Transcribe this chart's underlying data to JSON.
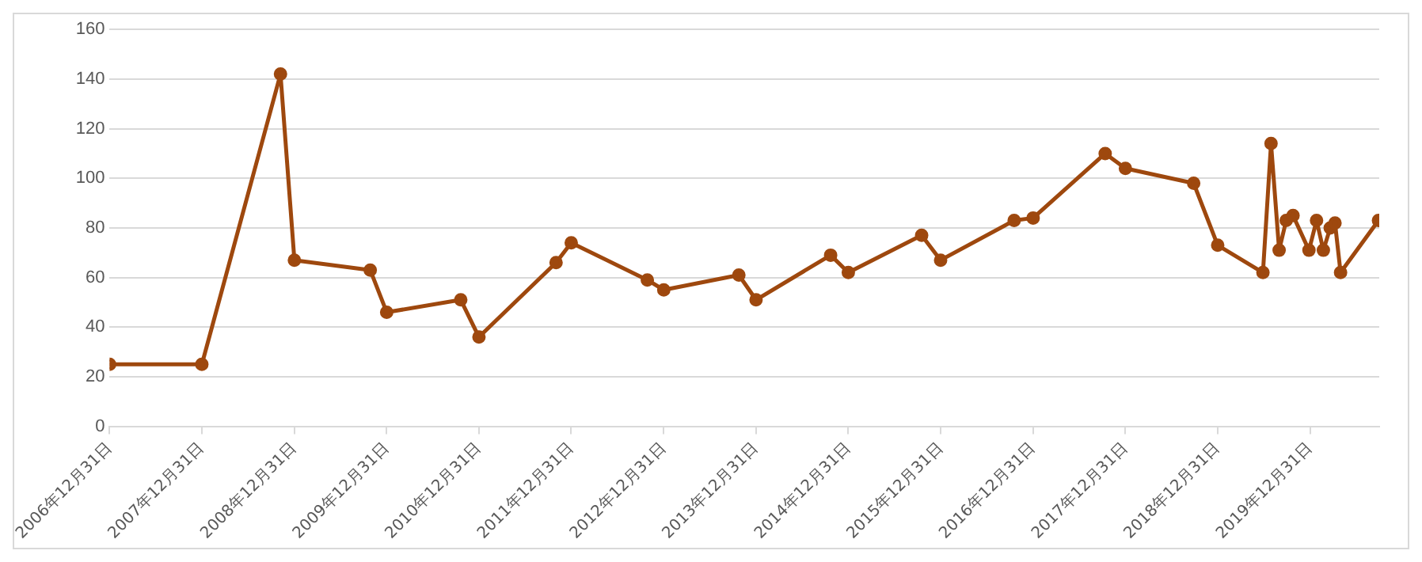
{
  "chart_data": {
    "type": "line",
    "x": [
      "2006-12-31",
      "2007-12-31",
      "2008-11-06",
      "2008-12-31",
      "2009-10-27",
      "2009-12-31",
      "2010-10-20",
      "2010-12-31",
      "2011-11-01",
      "2011-12-31",
      "2012-10-27",
      "2012-12-31",
      "2013-10-24",
      "2013-12-31",
      "2014-10-22",
      "2014-12-31",
      "2015-10-17",
      "2015-12-31",
      "2016-10-17",
      "2016-12-31",
      "2017-10-12",
      "2017-12-31",
      "2018-09-27",
      "2018-12-31",
      "2019-06-28",
      "2019-07-30",
      "2019-08-31",
      "2019-09-28",
      "2019-10-25",
      "2019-12-27",
      "2020-01-26",
      "2020-02-22",
      "2020-03-20",
      "2020-04-08",
      "2020-04-30",
      "2020-09-27"
    ],
    "series": [
      {
        "color": "#9e480e",
        "values": [
          25,
          25,
          142,
          67,
          63,
          46,
          51,
          36,
          66,
          74,
          59,
          55,
          61,
          51,
          69,
          62,
          77,
          67,
          83,
          84,
          110,
          104,
          98,
          73,
          62,
          114,
          71,
          83,
          85,
          71,
          83,
          71,
          80,
          82,
          62,
          83
        ]
      }
    ],
    "xlim": [
      "2006-12-31",
      "2020-09-30"
    ],
    "xticks": [
      {
        "value": "2006-12-31",
        "label": "2006年12月31日"
      },
      {
        "value": "2007-12-31",
        "label": "2007年12月31日"
      },
      {
        "value": "2008-12-31",
        "label": "2008年12月31日"
      },
      {
        "value": "2009-12-31",
        "label": "2009年12月31日"
      },
      {
        "value": "2010-12-31",
        "label": "2010年12月31日"
      },
      {
        "value": "2011-12-31",
        "label": "2011年12月31日"
      },
      {
        "value": "2012-12-31",
        "label": "2012年12月31日"
      },
      {
        "value": "2013-12-31",
        "label": "2013年12月31日"
      },
      {
        "value": "2014-12-31",
        "label": "2014年12月31日"
      },
      {
        "value": "2015-12-31",
        "label": "2015年12月31日"
      },
      {
        "value": "2016-12-31",
        "label": "2016年12月31日"
      },
      {
        "value": "2017-12-31",
        "label": "2017年12月31日"
      },
      {
        "value": "2018-12-31",
        "label": "2018年12月31日"
      },
      {
        "value": "2019-12-31",
        "label": "2019年12月31日"
      }
    ],
    "ylim": [
      0,
      160
    ],
    "yticks": [
      0,
      20,
      40,
      60,
      80,
      100,
      120,
      140,
      160
    ],
    "grid": "y",
    "legend": false,
    "marker": "circle",
    "line_style": "solid"
  }
}
